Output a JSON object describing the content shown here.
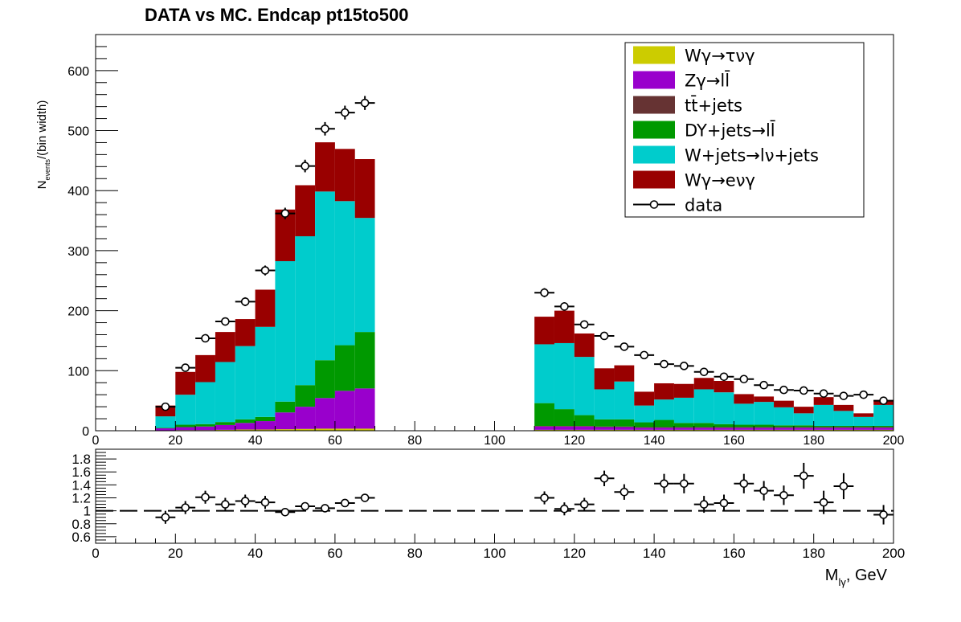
{
  "chart_data": {
    "type": "bar",
    "title": "DATA vs MC. Endcap  pt15to500",
    "ylabel_main": "N",
    "ylabel_sub": "events",
    "ylabel_tail": "/(bin width)",
    "xlabel_main": "M",
    "xlabel_sub": "lγ",
    "xlabel_tail": ", GeV",
    "stacked": true,
    "bin_width": 5,
    "xlim": [
      0,
      200
    ],
    "ylim": [
      0,
      660
    ],
    "ratio_ylim": [
      0.5,
      1.95
    ],
    "ratio_reference": 1.0,
    "x_ticks": [
      "0",
      "20",
      "40",
      "60",
      "80",
      "100",
      "120",
      "140",
      "160",
      "180",
      "200"
    ],
    "y_ticks": [
      "0",
      "100",
      "200",
      "300",
      "400",
      "500",
      "600"
    ],
    "ratio_ticks": [
      "0.6",
      "0.8",
      "1",
      "1.2",
      "1.4",
      "1.6",
      "1.8"
    ],
    "bin_low_edges": [
      15,
      20,
      25,
      30,
      35,
      40,
      45,
      50,
      55,
      60,
      65,
      110,
      115,
      120,
      125,
      130,
      135,
      140,
      145,
      150,
      155,
      160,
      165,
      170,
      175,
      180,
      185,
      190,
      195
    ],
    "series": [
      {
        "name": "Wγ→τνγ",
        "color": "#cccc00",
        "values": [
          0.5,
          1,
          1,
          1.5,
          2,
          2,
          2.5,
          3,
          3.5,
          3.5,
          3.5,
          1.5,
          1.5,
          1.5,
          1.5,
          1.5,
          1.5,
          1.5,
          1.5,
          1.5,
          1.5,
          1.5,
          1.5,
          1.5,
          1.5,
          1.5,
          1.5,
          1.5,
          1.5
        ]
      },
      {
        "name": "Zγ→ll̄",
        "color": "#9900cc",
        "values": [
          3.5,
          5,
          6,
          8,
          11,
          14,
          28,
          37,
          51,
          63,
          67,
          5.5,
          5.5,
          5.5,
          4.5,
          4.5,
          3.5,
          3.5,
          3.5,
          3.5,
          3.5,
          3.5,
          3.5,
          3.5,
          3.5,
          3.5,
          3.5,
          3.5,
          3.5
        ]
      },
      {
        "name": "tt̄+jets",
        "color": "#663333",
        "values": [
          0,
          0,
          0,
          0,
          0,
          0,
          0,
          0,
          0,
          0,
          0,
          1,
          1,
          1,
          1,
          1,
          1,
          1,
          1,
          1,
          1,
          1,
          1,
          1,
          1,
          1,
          1,
          1,
          1
        ]
      },
      {
        "name": "DY+jets→ll̄",
        "color": "#009900",
        "values": [
          1,
          4,
          4,
          5,
          6,
          7,
          18,
          36,
          63,
          76,
          94,
          38,
          28,
          18,
          12,
          12,
          8,
          12,
          7,
          7,
          5,
          4,
          4,
          3,
          3,
          2,
          2,
          2,
          2
        ]
      },
      {
        "name": "W+jets→lν+jets",
        "color": "#00cccc",
        "values": [
          19,
          50,
          70,
          100,
          122,
          150,
          234,
          248,
          281,
          240,
          190,
          98,
          110,
          97,
          50,
          63,
          28,
          34,
          42,
          56,
          53,
          35,
          38,
          30,
          20,
          35,
          25,
          15,
          35
        ]
      },
      {
        "name": "Wγ→eνγ",
        "color": "#990000",
        "values": [
          18,
          38,
          45,
          50,
          45,
          62,
          86,
          85,
          82,
          87,
          98,
          46,
          54,
          39,
          35,
          27,
          23,
          27,
          23,
          19,
          19,
          16,
          9,
          11,
          11,
          13,
          10,
          6,
          8
        ]
      }
    ],
    "data_series": {
      "name": "data",
      "values": [
        40,
        105,
        154,
        182,
        215,
        267,
        362,
        441,
        503,
        530,
        546,
        230,
        207,
        177,
        158,
        140,
        126,
        111,
        108,
        98,
        90,
        86,
        76,
        68,
        67,
        62,
        58,
        60,
        50
      ],
      "ratio": [
        0.9,
        1.05,
        1.21,
        1.1,
        1.15,
        1.13,
        0.98,
        1.07,
        1.04,
        1.12,
        1.2,
        1.2,
        1.03,
        1.1,
        1.5,
        1.29,
        1.42,
        1.42,
        1.1,
        1.12,
        1.42,
        1.31,
        1.24,
        1.54,
        1.13,
        1.38,
        0.94
      ],
      "ratio_bins": [
        15,
        20,
        25,
        30,
        35,
        40,
        45,
        50,
        55,
        60,
        65,
        110,
        115,
        120,
        125,
        130,
        140,
        145,
        150,
        155,
        160,
        165,
        170,
        175,
        180,
        185,
        195
      ],
      "ratio_err": [
        0.1,
        0.1,
        0.1,
        0.1,
        0.1,
        0.1,
        0.05,
        0.06,
        0.05,
        0.05,
        0.05,
        0.1,
        0.1,
        0.1,
        0.12,
        0.12,
        0.15,
        0.15,
        0.13,
        0.13,
        0.15,
        0.15,
        0.15,
        0.2,
        0.18,
        0.2,
        0.15
      ]
    },
    "legend": {
      "placement": "top-right",
      "entries": [
        {
          "label": "Wγ→τνγ",
          "color": "#cccc00",
          "kind": "box"
        },
        {
          "label": "Zγ→ll̄",
          "color": "#9900cc",
          "kind": "box"
        },
        {
          "label": "tt̄+jets",
          "color": "#663333",
          "kind": "box"
        },
        {
          "label": "DY+jets→ll̄",
          "color": "#009900",
          "kind": "box"
        },
        {
          "label": "W+jets→lν+jets",
          "color": "#00cccc",
          "kind": "box"
        },
        {
          "label": "Wγ→eνγ",
          "color": "#990000",
          "kind": "box"
        },
        {
          "label": "data",
          "color": "#000000",
          "kind": "marker"
        }
      ]
    }
  }
}
